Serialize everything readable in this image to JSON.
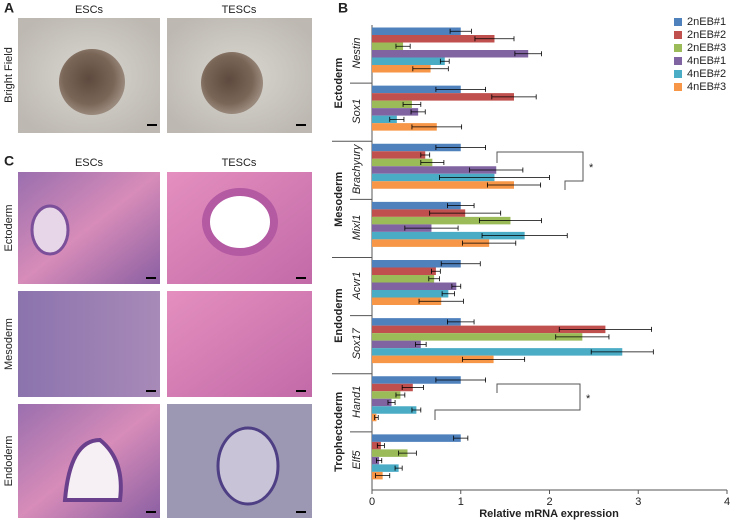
{
  "panel_a": {
    "label": "A",
    "columns": [
      "ESCs",
      "TESCs"
    ],
    "row_label": "Bright Field"
  },
  "panel_c": {
    "label": "C",
    "columns": [
      "ESCs",
      "TESCs"
    ],
    "rows": [
      "Ectoderm",
      "Mesoderm",
      "Endoderm"
    ]
  },
  "chart_data": {
    "type": "bar",
    "orientation": "horizontal",
    "panel_label": "B",
    "x_label": "Relative mRNA expression",
    "groups": [
      {
        "name": "Ectoderm",
        "categories": [
          "Nestin",
          "Sox1"
        ]
      },
      {
        "name": "Mesoderm",
        "categories": [
          "Brachyury",
          "Mixl1"
        ]
      },
      {
        "name": "Endoderm",
        "categories": [
          "Acvr1",
          "Sox17"
        ]
      },
      {
        "name": "Trophectoderm",
        "categories": [
          "Hand1",
          "Elf5"
        ]
      }
    ],
    "series": [
      {
        "name": "2nEB#1",
        "color": "#4f81bd",
        "values": [
          1.0,
          1.0,
          1.0,
          1.0,
          1.0,
          1.0,
          1.0,
          1.0
        ],
        "errors": [
          0.12,
          0.28,
          0.28,
          0.15,
          0.22,
          0.15,
          0.28,
          0.08
        ]
      },
      {
        "name": "2nEB#2",
        "color": "#c0504d",
        "values": [
          1.38,
          1.6,
          0.6,
          1.05,
          0.72,
          2.63,
          0.46,
          0.1
        ],
        "errors": [
          0.22,
          0.25,
          0.05,
          0.4,
          0.05,
          0.52,
          0.12,
          0.04
        ]
      },
      {
        "name": "2nEB#3",
        "color": "#9bbb59",
        "values": [
          0.35,
          0.45,
          0.68,
          1.56,
          0.7,
          2.37,
          0.32,
          0.4
        ],
        "errors": [
          0.08,
          0.1,
          0.13,
          0.35,
          0.06,
          0.3,
          0.05,
          0.1
        ]
      },
      {
        "name": "4nEB#1",
        "color": "#8064a2",
        "values": [
          1.76,
          0.52,
          1.4,
          0.67,
          0.95,
          0.55,
          0.22,
          0.08
        ],
        "errors": [
          0.15,
          0.08,
          0.3,
          0.3,
          0.05,
          0.06,
          0.04,
          0.03
        ]
      },
      {
        "name": "4nEB#2",
        "color": "#4bacc6",
        "values": [
          0.82,
          0.28,
          1.38,
          1.72,
          0.86,
          2.82,
          0.5,
          0.3
        ],
        "errors": [
          0.05,
          0.08,
          0.62,
          0.48,
          0.07,
          0.35,
          0.05,
          0.04
        ]
      },
      {
        "name": "4nEB#3",
        "color": "#f79646",
        "values": [
          0.66,
          0.73,
          1.6,
          1.32,
          0.78,
          1.37,
          0.05,
          0.12
        ],
        "errors": [
          0.2,
          0.28,
          0.3,
          0.3,
          0.25,
          0.35,
          0.02,
          0.08
        ]
      }
    ],
    "annotations": [
      "*",
      "*"
    ],
    "xlim": [
      0,
      4
    ],
    "xticks": [
      0,
      1,
      2,
      3,
      4
    ],
    "legend": "top-right"
  }
}
